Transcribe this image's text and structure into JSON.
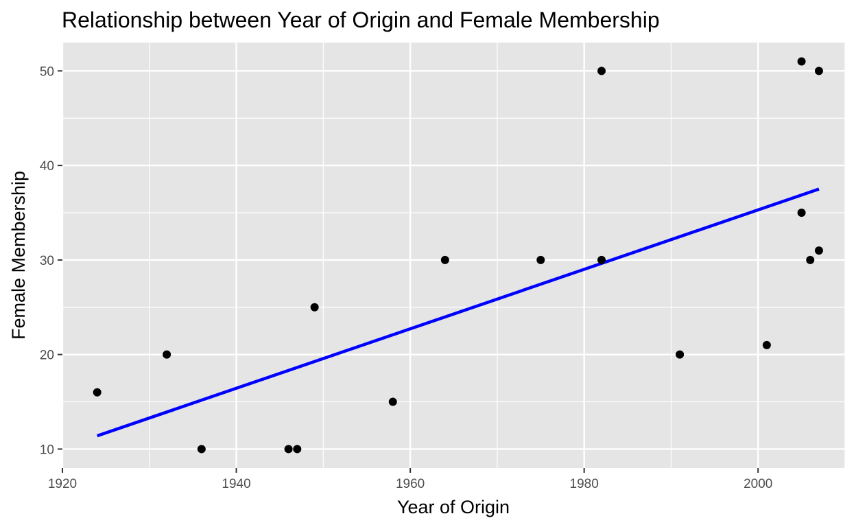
{
  "chart_data": {
    "type": "scatter",
    "title": "Relationship between Year of Origin and Female Membership",
    "xlabel": "Year of Origin",
    "ylabel": "Female Membership",
    "xlim": [
      1920,
      2010
    ],
    "ylim": [
      8,
      53
    ],
    "x_ticks": [
      1920,
      1940,
      1960,
      1980,
      2000
    ],
    "y_ticks": [
      10,
      20,
      30,
      40,
      50
    ],
    "grid": true,
    "points": [
      {
        "x": 1924,
        "y": 16
      },
      {
        "x": 1932,
        "y": 20
      },
      {
        "x": 1936,
        "y": 10
      },
      {
        "x": 1946,
        "y": 10
      },
      {
        "x": 1947,
        "y": 10
      },
      {
        "x": 1949,
        "y": 25
      },
      {
        "x": 1958,
        "y": 15
      },
      {
        "x": 1964,
        "y": 30
      },
      {
        "x": 1975,
        "y": 30
      },
      {
        "x": 1982,
        "y": 50
      },
      {
        "x": 1982,
        "y": 30
      },
      {
        "x": 1991,
        "y": 20
      },
      {
        "x": 2001,
        "y": 21
      },
      {
        "x": 2005,
        "y": 51
      },
      {
        "x": 2005,
        "y": 35
      },
      {
        "x": 2006,
        "y": 30
      },
      {
        "x": 2007,
        "y": 50
      },
      {
        "x": 2007,
        "y": 31
      }
    ],
    "trend_line": {
      "x": [
        1924,
        2007
      ],
      "y": [
        11.4,
        37.5
      ]
    },
    "colors": {
      "panel_background": "#e5e5e5",
      "grid": "#ffffff",
      "points": "#000000",
      "trend_line": "#0000ff",
      "tick_text": "#4d4d4d",
      "tick_mark": "#333333"
    }
  }
}
